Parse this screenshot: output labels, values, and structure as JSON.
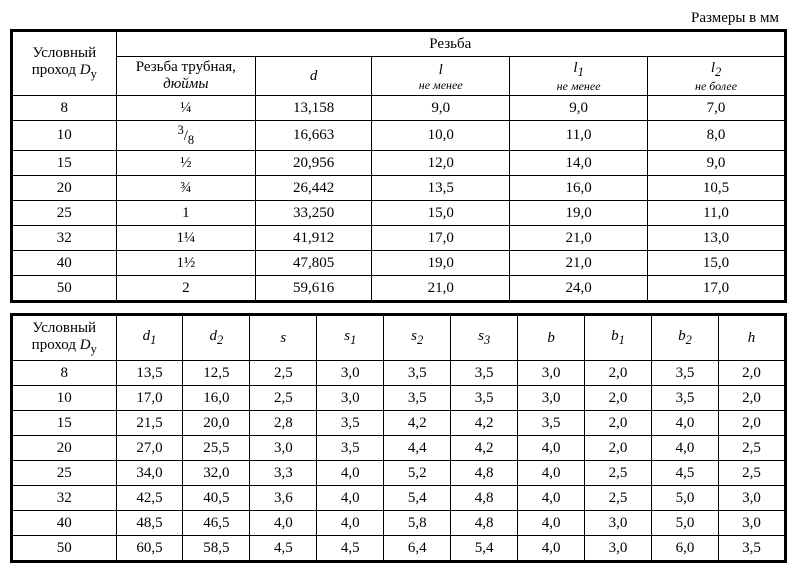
{
  "caption": "Размеры в мм",
  "table1": {
    "col0_header_line1": "Условный",
    "col0_header_line2_html": "проход <span class='ital'>D</span><sub>у</sub>",
    "group_header": "Резьба",
    "sub_headers": [
      {
        "top_html": "Резьба трубная,",
        "bottom_html": "<span class='ital'>дюймы</span>"
      },
      {
        "top_html": "<span class='ital'>d</span>",
        "bottom_html": ""
      },
      {
        "top_html": "<span class='ital'>l</span>",
        "bottom_html": "<span class='sub-note'>не менее</span>"
      },
      {
        "top_html": "<span class='ital'>l<sub>1</sub></span>",
        "bottom_html": "<span class='sub-note'>не менее</span>"
      },
      {
        "top_html": "<span class='ital'>l<sub>2</sub></span>",
        "bottom_html": "<span class='sub-note'>не более</span>"
      }
    ],
    "rows": [
      [
        "8",
        "¼",
        "13,158",
        "9,0",
        "9,0",
        "7,0"
      ],
      [
        "10",
        "<sup>3</sup>/<sub>8</sub>",
        "16,663",
        "10,0",
        "11,0",
        "8,0"
      ],
      [
        "15",
        "½",
        "20,956",
        "12,0",
        "14,0",
        "9,0"
      ],
      [
        "20",
        "¾",
        "26,442",
        "13,5",
        "16,0",
        "10,5"
      ],
      [
        "25",
        "1",
        "33,250",
        "15,0",
        "19,0",
        "11,0"
      ],
      [
        "32",
        "1¼",
        "41,912",
        "17,0",
        "21,0",
        "13,0"
      ],
      [
        "40",
        "1½",
        "47,805",
        "19,0",
        "21,0",
        "15,0"
      ],
      [
        "50",
        "2",
        "59,616",
        "21,0",
        "24,0",
        "17,0"
      ]
    ]
  },
  "table2": {
    "col0_header_line1": "Условный",
    "col0_header_line2_html": "проход <span class='ital'>D</span><sub>у</sub>",
    "headers_html": [
      "<span class='ital'>d<sub>1</sub></span>",
      "<span class='ital'>d<sub>2</sub></span>",
      "<span class='ital'>s</span>",
      "<span class='ital'>s<sub>1</sub></span>",
      "<span class='ital'>s<sub>2</sub></span>",
      "<span class='ital'>s<sub>3</sub></span>",
      "<span class='ital'>b</span>",
      "<span class='ital'>b<sub>1</sub></span>",
      "<span class='ital'>b<sub>2</sub></span>",
      "<span class='ital'>h</span>"
    ],
    "rows": [
      [
        "8",
        "13,5",
        "12,5",
        "2,5",
        "3,0",
        "3,5",
        "3,5",
        "3,0",
        "2,0",
        "3,5",
        "2,0"
      ],
      [
        "10",
        "17,0",
        "16,0",
        "2,5",
        "3,0",
        "3,5",
        "3,5",
        "3,0",
        "2,0",
        "3,5",
        "2,0"
      ],
      [
        "15",
        "21,5",
        "20,0",
        "2,8",
        "3,5",
        "4,2",
        "4,2",
        "3,5",
        "2,0",
        "4,0",
        "2,0"
      ],
      [
        "20",
        "27,0",
        "25,5",
        "3,0",
        "3,5",
        "4,4",
        "4,2",
        "4,0",
        "2,0",
        "4,0",
        "2,5"
      ],
      [
        "25",
        "34,0",
        "32,0",
        "3,3",
        "4,0",
        "5,2",
        "4,8",
        "4,0",
        "2,5",
        "4,5",
        "2,5"
      ],
      [
        "32",
        "42,5",
        "40,5",
        "3,6",
        "4,0",
        "5,4",
        "4,8",
        "4,0",
        "2,5",
        "5,0",
        "3,0"
      ],
      [
        "40",
        "48,5",
        "46,5",
        "4,0",
        "4,0",
        "5,8",
        "4,8",
        "4,0",
        "3,0",
        "5,0",
        "3,0"
      ],
      [
        "50",
        "60,5",
        "58,5",
        "4,5",
        "4,5",
        "6,4",
        "5,4",
        "4,0",
        "3,0",
        "6,0",
        "3,5"
      ]
    ]
  }
}
